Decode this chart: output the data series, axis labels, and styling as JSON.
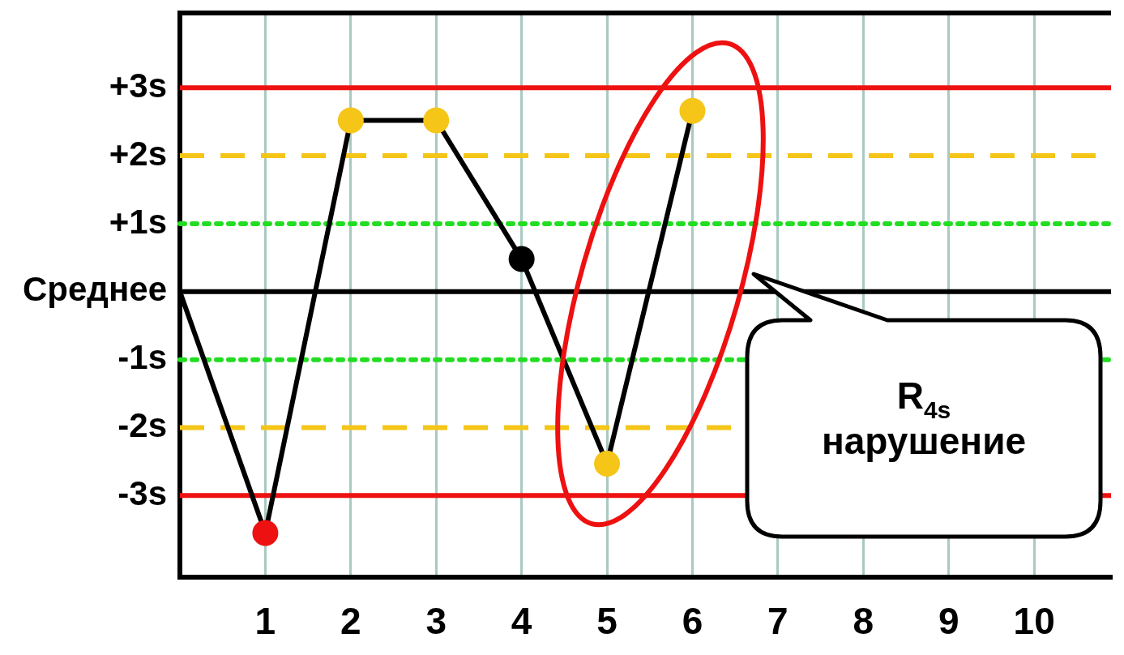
{
  "chart_data": {
    "type": "line",
    "x": [
      0,
      1,
      2,
      3,
      4,
      5,
      6
    ],
    "series": [
      {
        "values": [
          0,
          -3.55,
          2.52,
          2.52,
          0.48,
          -2.53,
          2.66
        ],
        "color": "#000000",
        "colors": [
          null,
          "#ee1111",
          "#f5c518",
          "#f5c518",
          "#000000",
          "#f5c518",
          "#f5c518"
        ]
      }
    ],
    "xlim": [
      0,
      10.9
    ],
    "xticks": [
      1,
      2,
      3,
      4,
      5,
      6,
      7,
      8,
      9,
      10
    ],
    "ylim": [
      -4.2,
      4.1
    ],
    "yticks": [
      {
        "value": 3,
        "label": "+3s"
      },
      {
        "value": 2,
        "label": "+2s"
      },
      {
        "value": 1,
        "label": "+1s"
      },
      {
        "value": 0,
        "label": "Среднее"
      },
      {
        "value": -1,
        "label": "-1s"
      },
      {
        "value": -2,
        "label": "-2s"
      },
      {
        "value": -3,
        "label": "-3s"
      }
    ],
    "ref_lines": [
      {
        "axis": "y",
        "value": 3,
        "color": "#ee1111",
        "line_style": "solid"
      },
      {
        "axis": "y",
        "value": 2,
        "color": "#f5c518",
        "line_style": "dashed"
      },
      {
        "axis": "y",
        "value": 1,
        "color": "#22dd22",
        "line_style": "dotted"
      },
      {
        "axis": "y",
        "value": 0,
        "color": "#000000",
        "line_style": "solid"
      },
      {
        "axis": "y",
        "value": -1,
        "color": "#22dd22",
        "line_style": "dotted"
      },
      {
        "axis": "y",
        "value": -2,
        "color": "#f5c518",
        "line_style": "dashed"
      },
      {
        "axis": "y",
        "value": -3,
        "color": "#ee1111",
        "line_style": "solid"
      }
    ],
    "annotations": [
      "R$_{4s}$ нарушение"
    ],
    "grid": "x",
    "marker": "circle",
    "line_style": "solid",
    "legend": false
  }
}
